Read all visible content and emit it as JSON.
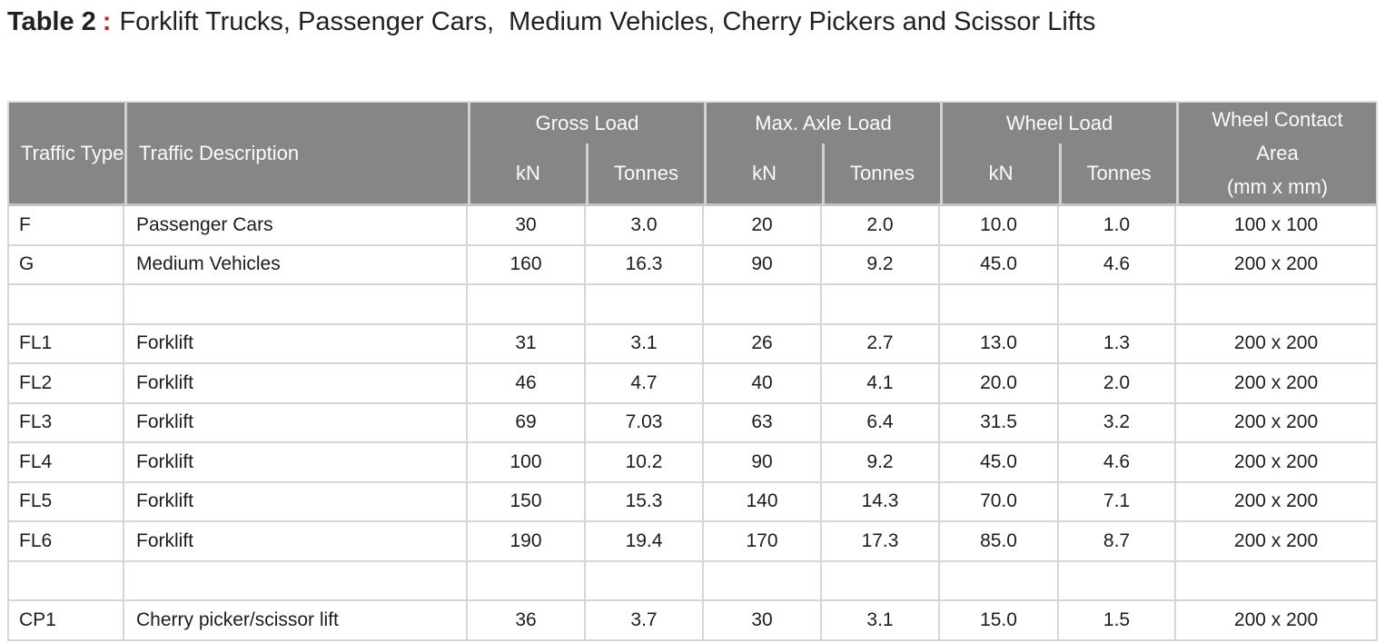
{
  "title": {
    "label": "Table 2",
    "separator": ":",
    "text": "Forklift Trucks, Passenger Cars,  Medium Vehicles, Cherry Pickers and Scissor Lifts"
  },
  "table": {
    "header": {
      "traffic_type": "Traffic Type",
      "traffic_description": "Traffic Description",
      "groups": [
        "Gross Load",
        "Max. Axle Load",
        "Wheel Load"
      ],
      "subheaders": [
        "kN",
        "Tonnes",
        "kN",
        "Tonnes",
        "kN",
        "Tonnes"
      ],
      "wheel_contact_lines": [
        "Wheel Contact",
        "Area",
        "(mm x mm)"
      ]
    },
    "column_keys": [
      "traffic-type",
      "traffic-description",
      "gross-load-kn",
      "gross-load-tonnes",
      "max-axle-load-kn",
      "max-axle-load-tonnes",
      "wheel-load-kn",
      "wheel-load-tonnes",
      "wheel-contact-area"
    ],
    "rows": [
      {
        "empty": false,
        "cells": [
          "F",
          "Passenger Cars",
          "30",
          "3.0",
          "20",
          "2.0",
          "10.0",
          "1.0",
          "100 x 100"
        ]
      },
      {
        "empty": false,
        "cells": [
          "G",
          "Medium Vehicles",
          "160",
          "16.3",
          "90",
          "9.2",
          "45.0",
          "4.6",
          "200 x 200"
        ]
      },
      {
        "empty": true,
        "cells": [
          "",
          "",
          "",
          "",
          "",
          "",
          "",
          "",
          ""
        ]
      },
      {
        "empty": false,
        "cells": [
          "FL1",
          "Forklift",
          "31",
          "3.1",
          "26",
          "2.7",
          "13.0",
          "1.3",
          "200 x 200"
        ]
      },
      {
        "empty": false,
        "cells": [
          "FL2",
          "Forklift",
          "46",
          "4.7",
          "40",
          "4.1",
          "20.0",
          "2.0",
          "200 x 200"
        ]
      },
      {
        "empty": false,
        "cells": [
          "FL3",
          "Forklift",
          "69",
          "7.03",
          "63",
          "6.4",
          "31.5",
          "3.2",
          "200 x 200"
        ]
      },
      {
        "empty": false,
        "cells": [
          "FL4",
          "Forklift",
          "100",
          "10.2",
          "90",
          "9.2",
          "45.0",
          "4.6",
          "200 x 200"
        ]
      },
      {
        "empty": false,
        "cells": [
          "FL5",
          "Forklift",
          "150",
          "15.3",
          "140",
          "14.3",
          "70.0",
          "7.1",
          "200 x 200"
        ]
      },
      {
        "empty": false,
        "cells": [
          "FL6",
          "Forklift",
          "190",
          "19.4",
          "170",
          "17.3",
          "85.0",
          "8.7",
          "200 x 200"
        ]
      },
      {
        "empty": true,
        "cells": [
          "",
          "",
          "",
          "",
          "",
          "",
          "",
          "",
          ""
        ]
      },
      {
        "empty": false,
        "cells": [
          "CP1",
          "Cherry picker/scissor lift",
          "36",
          "3.7",
          "30",
          "3.1",
          "15.0",
          "1.5",
          "200 x 200"
        ]
      }
    ]
  },
  "colors": {
    "header_background": "#868686",
    "header_text": "#fbfbfb",
    "grid_line": "#d6d6d6",
    "header_divider": "#d2d1d2",
    "title_text": "#231f20",
    "title_accent": "#c1272d",
    "body_text": "#1d1d21"
  }
}
